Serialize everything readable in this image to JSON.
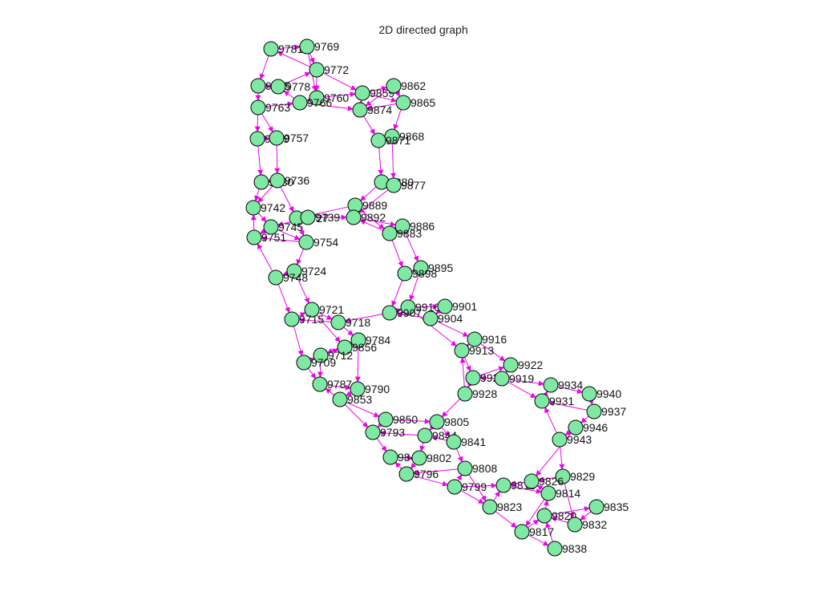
{
  "title": "2D directed graph",
  "colors": {
    "node_fill": "#7fe8a3",
    "node_stroke": "#000000",
    "edge": "#ee00ee"
  },
  "graph": {
    "nodes": [
      {
        "id": "9781",
        "label": "9781"
      },
      {
        "id": "9769",
        "label": "9769"
      },
      {
        "id": "9772",
        "label": "9772"
      },
      {
        "id": "9775",
        "label": "9775"
      },
      {
        "id": "9778",
        "label": "9778"
      },
      {
        "id": "9760",
        "label": "9760"
      },
      {
        "id": "9763",
        "label": "9763"
      },
      {
        "id": "9766",
        "label": "9766"
      },
      {
        "id": "9739",
        "label": "9739"
      },
      {
        "id": "9757",
        "label": "9757"
      },
      {
        "id": "9730",
        "label": "9730"
      },
      {
        "id": "9736",
        "label": "9736"
      },
      {
        "id": "9742",
        "label": "9742"
      },
      {
        "id": "9727",
        "label": "9727"
      },
      {
        "id": "9739b",
        "label": "9739"
      },
      {
        "id": "9745",
        "label": "9745"
      },
      {
        "id": "9751",
        "label": "9751"
      },
      {
        "id": "9754",
        "label": "9754"
      },
      {
        "id": "9724",
        "label": "9724"
      },
      {
        "id": "9748",
        "label": "9748"
      },
      {
        "id": "9859",
        "label": "9859"
      },
      {
        "id": "9862",
        "label": "9862"
      },
      {
        "id": "9874",
        "label": "9874"
      },
      {
        "id": "9865",
        "label": "9865"
      },
      {
        "id": "9868",
        "label": "9868"
      },
      {
        "id": "9871",
        "label": "9871"
      },
      {
        "id": "9880",
        "label": "9880"
      },
      {
        "id": "9877",
        "label": "9877"
      },
      {
        "id": "9889",
        "label": "9889"
      },
      {
        "id": "9892",
        "label": "9892"
      },
      {
        "id": "9886",
        "label": "9886"
      },
      {
        "id": "9883",
        "label": "9883"
      },
      {
        "id": "9895",
        "label": "9895"
      },
      {
        "id": "9898",
        "label": "9898"
      },
      {
        "id": "9721",
        "label": "9721"
      },
      {
        "id": "9715",
        "label": "9715"
      },
      {
        "id": "9718",
        "label": "9718"
      },
      {
        "id": "9910",
        "label": "9910"
      },
      {
        "id": "9901",
        "label": "9901"
      },
      {
        "id": "9907",
        "label": "9907"
      },
      {
        "id": "9904",
        "label": "9904"
      },
      {
        "id": "9784",
        "label": "9784"
      },
      {
        "id": "9856",
        "label": "9856"
      },
      {
        "id": "9712",
        "label": "9712"
      },
      {
        "id": "9709",
        "label": "9709"
      },
      {
        "id": "9916",
        "label": "9916"
      },
      {
        "id": "9913",
        "label": "9913"
      },
      {
        "id": "9922",
        "label": "9922"
      },
      {
        "id": "9925",
        "label": "9925"
      },
      {
        "id": "9919",
        "label": "9919"
      },
      {
        "id": "9787",
        "label": "9787"
      },
      {
        "id": "9790",
        "label": "9790"
      },
      {
        "id": "9853",
        "label": "9853"
      },
      {
        "id": "9928",
        "label": "9928"
      },
      {
        "id": "9934",
        "label": "9934"
      },
      {
        "id": "9940",
        "label": "9940"
      },
      {
        "id": "9931",
        "label": "9931"
      },
      {
        "id": "9937",
        "label": "9937"
      },
      {
        "id": "9850",
        "label": "9850"
      },
      {
        "id": "9805",
        "label": "9805"
      },
      {
        "id": "9793",
        "label": "9793"
      },
      {
        "id": "9844",
        "label": "9844"
      },
      {
        "id": "9946",
        "label": "9946"
      },
      {
        "id": "9943",
        "label": "9943"
      },
      {
        "id": "9841",
        "label": "9841"
      },
      {
        "id": "9847",
        "label": "9847"
      },
      {
        "id": "9802",
        "label": "9802"
      },
      {
        "id": "9808",
        "label": "9808"
      },
      {
        "id": "9796",
        "label": "9796"
      },
      {
        "id": "9829",
        "label": "9829"
      },
      {
        "id": "9799",
        "label": "9799"
      },
      {
        "id": "9811",
        "label": "9811"
      },
      {
        "id": "9826",
        "label": "9826"
      },
      {
        "id": "9814",
        "label": "9814"
      },
      {
        "id": "9823",
        "label": "9823"
      },
      {
        "id": "9835",
        "label": "9835"
      },
      {
        "id": "9820",
        "label": "9820"
      },
      {
        "id": "9832",
        "label": "9832"
      },
      {
        "id": "9817",
        "label": "9817"
      },
      {
        "id": "9838",
        "label": "9838"
      }
    ],
    "edges": [
      [
        "9781",
        "9769"
      ],
      [
        "9769",
        "9772"
      ],
      [
        "9772",
        "9781"
      ],
      [
        "9781",
        "9775"
      ],
      [
        "9775",
        "9778"
      ],
      [
        "9778",
        "9772"
      ],
      [
        "9772",
        "9760"
      ],
      [
        "9760",
        "9766"
      ],
      [
        "9766",
        "9778"
      ],
      [
        "9775",
        "9763"
      ],
      [
        "9763",
        "9766"
      ],
      [
        "9769",
        "9760"
      ],
      [
        "9772",
        "9859"
      ],
      [
        "9766",
        "9874"
      ],
      [
        "9760",
        "9859"
      ],
      [
        "9859",
        "9862"
      ],
      [
        "9862",
        "9865"
      ],
      [
        "9865",
        "9874"
      ],
      [
        "9874",
        "9859"
      ],
      [
        "9859",
        "9865"
      ],
      [
        "9862",
        "9874"
      ],
      [
        "9775",
        "9739"
      ],
      [
        "9763",
        "9757"
      ],
      [
        "9739",
        "9757"
      ],
      [
        "9757",
        "9736"
      ],
      [
        "9739",
        "9730"
      ],
      [
        "9730",
        "9736"
      ],
      [
        "9736",
        "9742"
      ],
      [
        "9730",
        "9742"
      ],
      [
        "9742",
        "9745"
      ],
      [
        "9745",
        "9751"
      ],
      [
        "9751",
        "9742"
      ],
      [
        "9736",
        "9727"
      ],
      [
        "9727",
        "9739b"
      ],
      [
        "9739b",
        "9745"
      ],
      [
        "9745",
        "9754"
      ],
      [
        "9754",
        "9751"
      ],
      [
        "9727",
        "9754"
      ],
      [
        "9739b",
        "9892"
      ],
      [
        "9754",
        "9724"
      ],
      [
        "9724",
        "9748"
      ],
      [
        "9748",
        "9751"
      ],
      [
        "9874",
        "9871"
      ],
      [
        "9865",
        "9868"
      ],
      [
        "9868",
        "9871"
      ],
      [
        "9871",
        "9880"
      ],
      [
        "9868",
        "9877"
      ],
      [
        "9880",
        "9877"
      ],
      [
        "9880",
        "9889"
      ],
      [
        "9877",
        "9892"
      ],
      [
        "9889",
        "9892"
      ],
      [
        "9889",
        "9727"
      ],
      [
        "9892",
        "9886"
      ],
      [
        "9886",
        "9883"
      ],
      [
        "9883",
        "9892"
      ],
      [
        "9889",
        "9883"
      ],
      [
        "9886",
        "9895"
      ],
      [
        "9883",
        "9898"
      ],
      [
        "9895",
        "9898"
      ],
      [
        "9898",
        "9907"
      ],
      [
        "9895",
        "9910"
      ],
      [
        "9907",
        "9910"
      ],
      [
        "9910",
        "9901"
      ],
      [
        "9901",
        "9904"
      ],
      [
        "9904",
        "9907"
      ],
      [
        "9907",
        "9718"
      ],
      [
        "9748",
        "9715"
      ],
      [
        "9724",
        "9721"
      ],
      [
        "9715",
        "9721"
      ],
      [
        "9721",
        "9718"
      ],
      [
        "9718",
        "9715"
      ],
      [
        "9718",
        "9784"
      ],
      [
        "9715",
        "9709"
      ],
      [
        "9709",
        "9712"
      ],
      [
        "9712",
        "9856"
      ],
      [
        "9856",
        "9784"
      ],
      [
        "9784",
        "9712"
      ],
      [
        "9721",
        "9856"
      ],
      [
        "9709",
        "9787"
      ],
      [
        "9712",
        "9787"
      ],
      [
        "9787",
        "9790"
      ],
      [
        "9790",
        "9853"
      ],
      [
        "9853",
        "9787"
      ],
      [
        "9784",
        "9790"
      ],
      [
        "9853",
        "9850"
      ],
      [
        "9853",
        "9793"
      ],
      [
        "9850",
        "9793"
      ],
      [
        "9850",
        "9805"
      ],
      [
        "9805",
        "9844"
      ],
      [
        "9844",
        "9793"
      ],
      [
        "9793",
        "9847"
      ],
      [
        "9844",
        "9802"
      ],
      [
        "9847",
        "9802"
      ],
      [
        "9802",
        "9796"
      ],
      [
        "9796",
        "9847"
      ],
      [
        "9805",
        "9841"
      ],
      [
        "9841",
        "9844"
      ],
      [
        "9841",
        "9808"
      ],
      [
        "9808",
        "9796"
      ],
      [
        "9796",
        "9799"
      ],
      [
        "9799",
        "9808"
      ],
      [
        "9910",
        "9913"
      ],
      [
        "9904",
        "9916"
      ],
      [
        "9913",
        "9916"
      ],
      [
        "9916",
        "9922"
      ],
      [
        "9913",
        "9925"
      ],
      [
        "9925",
        "9922"
      ],
      [
        "9922",
        "9919"
      ],
      [
        "9919",
        "9925"
      ],
      [
        "9925",
        "9928"
      ],
      [
        "9928",
        "9913"
      ],
      [
        "9928",
        "9805"
      ],
      [
        "9919",
        "9934"
      ],
      [
        "9919",
        "9931"
      ],
      [
        "9934",
        "9940"
      ],
      [
        "9940",
        "9937"
      ],
      [
        "9937",
        "9931"
      ],
      [
        "9931",
        "9934"
      ],
      [
        "9937",
        "9946"
      ],
      [
        "9946",
        "9943"
      ],
      [
        "9943",
        "9931"
      ],
      [
        "9943",
        "9829"
      ],
      [
        "9946",
        "9826"
      ],
      [
        "9829",
        "9826"
      ],
      [
        "9826",
        "9811"
      ],
      [
        "9811",
        "9814"
      ],
      [
        "9814",
        "9826"
      ],
      [
        "9799",
        "9811"
      ],
      [
        "9799",
        "9823"
      ],
      [
        "9823",
        "9811"
      ],
      [
        "9823",
        "9817"
      ],
      [
        "9817",
        "9820"
      ],
      [
        "9820",
        "9814"
      ],
      [
        "9820",
        "9835"
      ],
      [
        "9835",
        "9832"
      ],
      [
        "9832",
        "9820"
      ],
      [
        "9817",
        "9838"
      ],
      [
        "9838",
        "9820"
      ],
      [
        "9829",
        "9832"
      ],
      [
        "9814",
        "9817"
      ],
      [
        "9808",
        "9823"
      ]
    ]
  }
}
